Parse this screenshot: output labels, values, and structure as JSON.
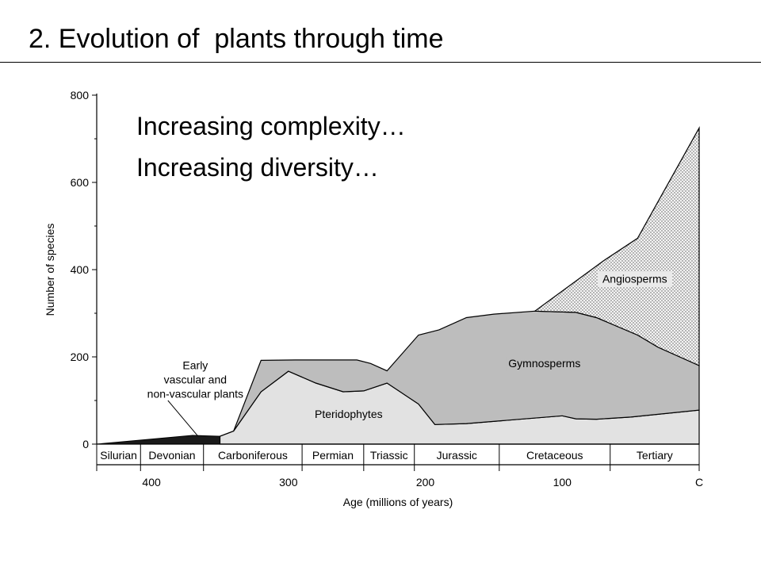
{
  "slide": {
    "title": "2. Evolution of  plants through time"
  },
  "overlay": {
    "lines": [
      "Increasing complexity…",
      "Increasing diversity…"
    ]
  },
  "chart_data": {
    "type": "area",
    "xlabel": "Age (millions of years)",
    "ylabel": "Number of species",
    "xlim": [
      440,
      0
    ],
    "ylim": [
      0,
      800
    ],
    "x_ticks": [
      400,
      300,
      200,
      100,
      0
    ],
    "x_tick_labels": [
      "400",
      "300",
      "200",
      "100",
      "C"
    ],
    "y_ticks": [
      0,
      200,
      400,
      600,
      800
    ],
    "y_tick_labels": [
      "0",
      "200",
      "400",
      "600",
      "800"
    ],
    "periods": [
      {
        "name": "Silurian",
        "start": 440,
        "end": 408
      },
      {
        "name": "Devonian",
        "start": 408,
        "end": 362
      },
      {
        "name": "Carboniferous",
        "start": 362,
        "end": 290
      },
      {
        "name": "Permian",
        "start": 290,
        "end": 245
      },
      {
        "name": "Triassic",
        "start": 245,
        "end": 208
      },
      {
        "name": "Jurassic",
        "start": 208,
        "end": 146
      },
      {
        "name": "Cretaceous",
        "start": 146,
        "end": 65
      },
      {
        "name": "Tertiary",
        "start": 65,
        "end": 0
      }
    ],
    "series": [
      {
        "name": "Early vascular and non-vascular plants",
        "label_lines": [
          "Early",
          "vascular and",
          "non-vascular plants"
        ],
        "fill": "#1a1a1a",
        "points": [
          [
            440,
            0
          ],
          [
            370,
            20
          ],
          [
            350,
            18
          ]
        ]
      },
      {
        "name": "Pteridophytes",
        "label_lines": [
          "Pteridophytes"
        ],
        "fill": "#e2e2e2",
        "points": [
          [
            350,
            18
          ],
          [
            340,
            30
          ],
          [
            320,
            120
          ],
          [
            300,
            167
          ],
          [
            280,
            140
          ],
          [
            260,
            120
          ],
          [
            245,
            122
          ],
          [
            228,
            140
          ],
          [
            205,
            92
          ],
          [
            193,
            45
          ],
          [
            170,
            47
          ],
          [
            100,
            65
          ],
          [
            90,
            58
          ],
          [
            75,
            57
          ],
          [
            50,
            62
          ],
          [
            0,
            78
          ]
        ]
      },
      {
        "name": "Gymnosperms",
        "label_lines": [
          "Gymnosperms"
        ],
        "fill": "#bdbdbd",
        "points": [
          [
            350,
            18
          ],
          [
            340,
            30
          ],
          [
            320,
            192
          ],
          [
            295,
            193
          ],
          [
            250,
            193
          ],
          [
            240,
            185
          ],
          [
            228,
            168
          ],
          [
            205,
            250
          ],
          [
            190,
            262
          ],
          [
            170,
            290
          ],
          [
            150,
            298
          ],
          [
            120,
            305
          ],
          [
            90,
            302
          ],
          [
            75,
            290
          ],
          [
            60,
            270
          ],
          [
            45,
            250
          ],
          [
            30,
            222
          ],
          [
            0,
            180
          ]
        ]
      },
      {
        "name": "Angiosperms",
        "label_lines": [
          "Angiosperms"
        ],
        "fill": "#eaeaea",
        "pattern": "dots",
        "points": [
          [
            120,
            305
          ],
          [
            70,
            420
          ],
          [
            45,
            472
          ],
          [
            0,
            725
          ]
        ]
      }
    ]
  }
}
